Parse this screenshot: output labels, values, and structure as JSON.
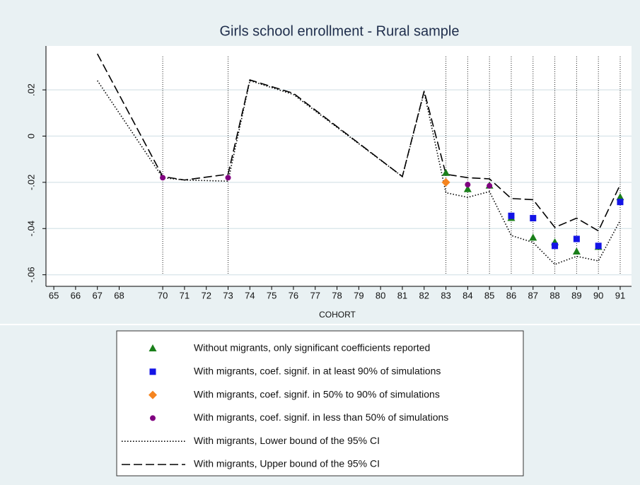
{
  "chart_data": {
    "type": "scatter",
    "title": "Girls school enrollment - Rural sample",
    "xlabel": "COHORT",
    "xlim": [
      64.64,
      91.52
    ],
    "xticks": [
      65,
      66,
      67,
      68,
      70,
      71,
      72,
      73,
      74,
      75,
      76,
      77,
      78,
      79,
      80,
      81,
      82,
      83,
      84,
      85,
      86,
      87,
      88,
      89,
      90,
      91
    ],
    "ylim": [
      -0.065,
      0.039
    ],
    "yticks": [
      {
        "value": 0.02,
        "label": ".02"
      },
      0,
      {
        "value": -0.02,
        "label": "-.02"
      },
      {
        "value": -0.04,
        "label": "-.04"
      },
      {
        "value": -0.06,
        "label": "-.06"
      }
    ],
    "grid": true,
    "vlines": [
      70,
      73,
      83,
      84,
      85,
      86,
      87,
      88,
      89,
      90,
      91
    ],
    "series": [
      {
        "name": "Without migrants, only significant coefficients reported",
        "type": "scatter",
        "marker": "triangle",
        "color": "#1a7f1a",
        "x": [
          83,
          84,
          85,
          86,
          87,
          88,
          89,
          90,
          91
        ],
        "values": [
          -0.016,
          -0.023,
          -0.0215,
          -0.0355,
          -0.044,
          -0.046,
          -0.05,
          -0.048,
          -0.0265
        ]
      },
      {
        "name": "With migrants, coef. signif. in at least 90% of simulations",
        "type": "scatter",
        "marker": "square",
        "color": "#1414e6",
        "x": [
          86,
          87,
          88,
          89,
          90,
          91
        ],
        "values": [
          -0.0345,
          -0.0355,
          -0.0475,
          -0.0445,
          -0.0475,
          -0.0285
        ]
      },
      {
        "name": "With migrants, coef. signif. in 50% to 90% of simulations",
        "type": "scatter",
        "marker": "diamond",
        "color": "#f5841f",
        "x": [
          83
        ],
        "values": [
          -0.02
        ]
      },
      {
        "name": "With migrants, coef. signif. in less than 50% of simulations",
        "type": "scatter",
        "marker": "circle",
        "color": "#800080",
        "x": [
          70,
          73,
          84,
          85
        ],
        "values": [
          -0.018,
          -0.018,
          -0.021,
          -0.0215
        ]
      },
      {
        "name": "With migrants, Lower bound of the 95% CI",
        "type": "line",
        "dash": "1.5,2.5",
        "color": "#000000",
        "x": [
          67,
          70,
          71,
          73,
          74,
          76,
          81,
          82,
          83,
          84,
          85,
          86,
          87,
          88,
          89,
          90,
          91
        ],
        "values": [
          0.024,
          -0.018,
          -0.019,
          -0.0195,
          0.024,
          0.018,
          -0.0175,
          0.019,
          -0.0245,
          -0.0265,
          -0.024,
          -0.043,
          -0.046,
          -0.0555,
          -0.052,
          -0.054,
          -0.0365
        ]
      },
      {
        "name": "With migrants, Upper bound of the 95% CI",
        "type": "line",
        "dash": "12,5",
        "color": "#000000",
        "x": [
          67,
          70,
          71,
          73,
          74,
          76,
          81,
          82,
          83,
          84,
          85,
          86,
          87,
          88,
          89,
          90,
          91
        ],
        "values": [
          0.0356,
          -0.0175,
          -0.019,
          -0.0165,
          0.0243,
          0.0185,
          -0.0175,
          0.0195,
          -0.0165,
          -0.018,
          -0.0185,
          -0.027,
          -0.0275,
          -0.0395,
          -0.0355,
          -0.041,
          -0.021
        ]
      }
    ]
  }
}
